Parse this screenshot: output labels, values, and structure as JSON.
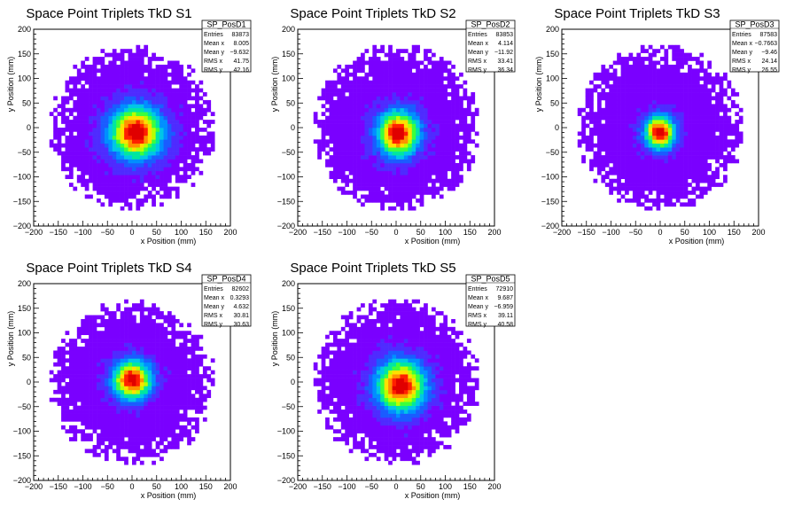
{
  "window": {
    "title": ""
  },
  "chart_data": [
    {
      "type": "heatmap",
      "title": "Space Point Triplets TkD S1",
      "xlabel": "x Position (mm)",
      "ylabel": "y Position (mm)",
      "xlim": [
        -200,
        200
      ],
      "ylim": [
        -200,
        200
      ],
      "x_ticks": [
        "−200",
        "−150",
        "−100",
        "−50",
        "0",
        "50",
        "100",
        "150",
        "200"
      ],
      "y_ticks": [
        "−200",
        "−150",
        "−100",
        "−50",
        "0",
        "50",
        "100",
        "150",
        "200"
      ],
      "stats": {
        "name": "SP_PosD1",
        "rows": [
          {
            "label": "Entries",
            "value": "83873"
          },
          {
            "label": "Mean x",
            "value": "8.005"
          },
          {
            "label": "Mean y",
            "value": "−9.632"
          },
          {
            "label": "RMS x",
            "value": "41.75"
          },
          {
            "label": "RMS y",
            "value": "42.16"
          }
        ]
      },
      "distribution": {
        "mean_x": 8.0,
        "mean_y": -9.6,
        "rms_x": 41.75,
        "rms_y": 42.16,
        "radius": 158,
        "bin_mm": 8
      }
    },
    {
      "type": "heatmap",
      "title": "Space Point Triplets TkD S2",
      "xlabel": "x Position (mm)",
      "ylabel": "y Position (mm)",
      "xlim": [
        -200,
        200
      ],
      "ylim": [
        -200,
        200
      ],
      "x_ticks": [
        "−200",
        "−150",
        "−100",
        "−50",
        "0",
        "50",
        "100",
        "150",
        "200"
      ],
      "y_ticks": [
        "−200",
        "−150",
        "−100",
        "−50",
        "0",
        "50",
        "100",
        "150",
        "200"
      ],
      "stats": {
        "name": "SP_PosD2",
        "rows": [
          {
            "label": "Entries",
            "value": "83853"
          },
          {
            "label": "Mean x",
            "value": "4.114"
          },
          {
            "label": "Mean y",
            "value": "−11.92"
          },
          {
            "label": "RMS x",
            "value": "33.41"
          },
          {
            "label": "RMS y",
            "value": "36.34"
          }
        ]
      },
      "distribution": {
        "mean_x": 4.1,
        "mean_y": -11.9,
        "rms_x": 33.41,
        "rms_y": 36.34,
        "radius": 160,
        "bin_mm": 8
      }
    },
    {
      "type": "heatmap",
      "title": "Space Point Triplets TkD S3",
      "xlabel": "x Position (mm)",
      "ylabel": "y Position (mm)",
      "xlim": [
        -200,
        200
      ],
      "ylim": [
        -200,
        200
      ],
      "x_ticks": [
        "−200",
        "−150",
        "−100",
        "−50",
        "0",
        "50",
        "100",
        "150",
        "200"
      ],
      "y_ticks": [
        "−200",
        "−150",
        "−100",
        "−50",
        "0",
        "50",
        "100",
        "150",
        "200"
      ],
      "stats": {
        "name": "SP_PosD3",
        "rows": [
          {
            "label": "Entries",
            "value": "87583"
          },
          {
            "label": "Mean x",
            "value": "−0.7663"
          },
          {
            "label": "Mean y",
            "value": "−9.46"
          },
          {
            "label": "RMS x",
            "value": "24.14"
          },
          {
            "label": "RMS y",
            "value": "26.55"
          }
        ]
      },
      "distribution": {
        "mean_x": -0.8,
        "mean_y": -9.5,
        "rms_x": 24.14,
        "rms_y": 26.55,
        "radius": 160,
        "bin_mm": 8
      }
    },
    {
      "type": "heatmap",
      "title": "Space Point Triplets TkD S4",
      "xlabel": "x Position (mm)",
      "ylabel": "y Position (mm)",
      "xlim": [
        -200,
        200
      ],
      "ylim": [
        -200,
        200
      ],
      "x_ticks": [
        "−200",
        "−150",
        "−100",
        "−50",
        "0",
        "50",
        "100",
        "150",
        "200"
      ],
      "y_ticks": [
        "−200",
        "−150",
        "−100",
        "−50",
        "0",
        "50",
        "100",
        "150",
        "200"
      ],
      "stats": {
        "name": "SP_PosD4",
        "rows": [
          {
            "label": "Entries",
            "value": "82602"
          },
          {
            "label": "Mean x",
            "value": "0.3293"
          },
          {
            "label": "Mean y",
            "value": "4.632"
          },
          {
            "label": "RMS x",
            "value": "30.81"
          },
          {
            "label": "RMS y",
            "value": "30.63"
          }
        ]
      },
      "distribution": {
        "mean_x": 0.3,
        "mean_y": 4.6,
        "rms_x": 30.81,
        "rms_y": 30.63,
        "radius": 158,
        "bin_mm": 8
      }
    },
    {
      "type": "heatmap",
      "title": "Space Point Triplets TkD S5",
      "xlabel": "x Position (mm)",
      "ylabel": "y Position (mm)",
      "xlim": [
        -200,
        200
      ],
      "ylim": [
        -200,
        200
      ],
      "x_ticks": [
        "−200",
        "−150",
        "−100",
        "−50",
        "0",
        "50",
        "100",
        "150",
        "200"
      ],
      "y_ticks": [
        "−200",
        "−150",
        "−100",
        "−50",
        "0",
        "50",
        "100",
        "150",
        "200"
      ],
      "stats": {
        "name": "SP_PosD5",
        "rows": [
          {
            "label": "Entries",
            "value": "72910"
          },
          {
            "label": "Mean x",
            "value": "9.687"
          },
          {
            "label": "Mean y",
            "value": "−6.959"
          },
          {
            "label": "RMS x",
            "value": "39.11"
          },
          {
            "label": "RMS y",
            "value": "40.58"
          }
        ]
      },
      "distribution": {
        "mean_x": 9.7,
        "mean_y": -7.0,
        "rms_x": 39.11,
        "rms_y": 40.58,
        "radius": 160,
        "bin_mm": 8
      }
    }
  ],
  "colors": {
    "palette": [
      "#7a00ff",
      "#4f2bff",
      "#1a5cff",
      "#008fff",
      "#00c6e6",
      "#00e6a0",
      "#3cff3c",
      "#b8ff00",
      "#ffe000",
      "#ff9000",
      "#ff2000",
      "#e00000"
    ],
    "frame": "#000000",
    "background": "#ffffff"
  }
}
